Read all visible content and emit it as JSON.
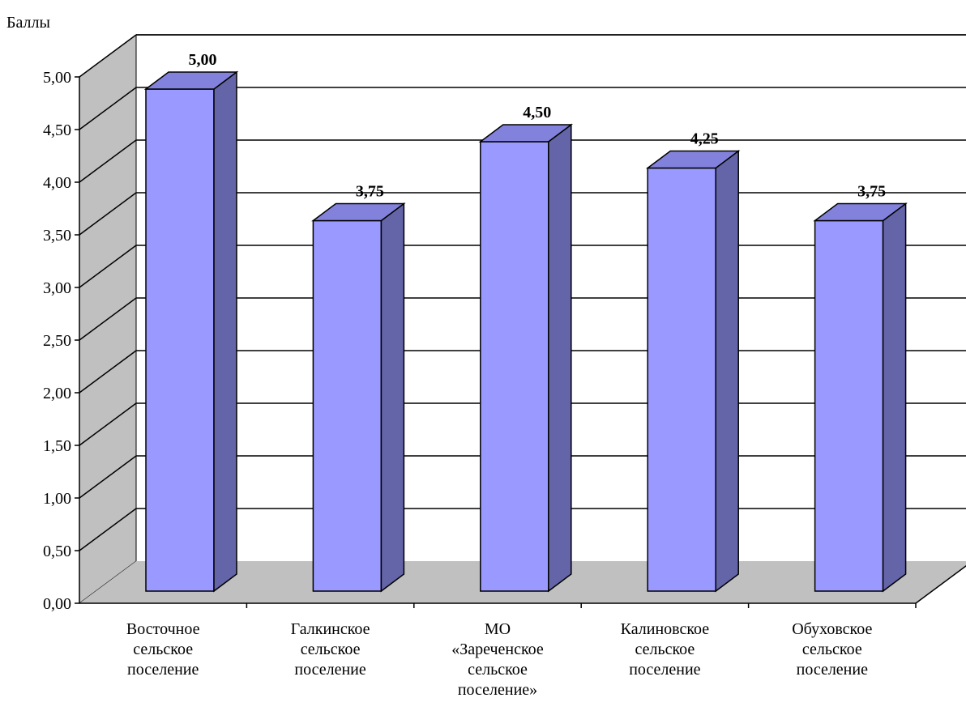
{
  "chart_data": {
    "type": "bar",
    "ylabel": "Баллы",
    "xlabel": "",
    "ylim": [
      0,
      5
    ],
    "ticks": [
      "0,00",
      "0,50",
      "1,00",
      "1,50",
      "2,00",
      "2,50",
      "3,00",
      "3,50",
      "4,00",
      "4,50",
      "5,00"
    ],
    "categories": [
      [
        "Восточное",
        "сельское",
        "поселение"
      ],
      [
        "Галкинское",
        "сельское",
        "поселение"
      ],
      [
        "МО",
        "«Зареченское",
        "сельское",
        "поселение»"
      ],
      [
        "Калиновское",
        "сельское",
        "поселение"
      ],
      [
        "Обуховское",
        "сельское",
        "поселение"
      ]
    ],
    "values": [
      5.0,
      3.75,
      4.5,
      4.25,
      3.75
    ],
    "value_labels": [
      "5,00",
      "3,75",
      "4,50",
      "4,25",
      "3,75"
    ],
    "grid": true,
    "legend": "none",
    "colors": {
      "bar_front": "#9999FF",
      "bar_side": "#6464A8",
      "bar_top": "#8282DC",
      "wall_left": "#C0C0C0",
      "floor": "#C0C0C0",
      "grid": "#000000"
    }
  }
}
